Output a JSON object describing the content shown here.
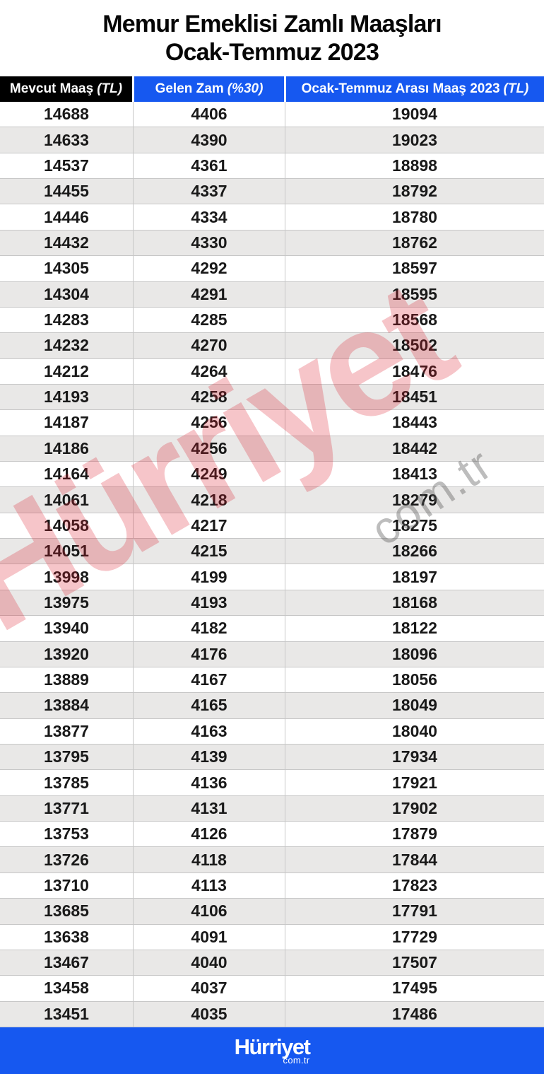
{
  "title": {
    "line1": "Memur Emeklisi Zamlı Maaşları",
    "line2": "Ocak-Temmuz 2023"
  },
  "table": {
    "columns": [
      {
        "label": "Mevcut Maaş",
        "suffix": "(TL)"
      },
      {
        "label": "Gelen Zam",
        "suffix": "(%30)"
      },
      {
        "label": "Ocak-Temmuz Arası Maaş 2023",
        "suffix": "(TL)"
      }
    ]
  },
  "chart_data": {
    "type": "table",
    "title": "Memur Emeklisi Zamlı Maaşları Ocak-Temmuz 2023",
    "columns": [
      "Mevcut Maaş (TL)",
      "Gelen Zam (%30)",
      "Ocak-Temmuz Arası Maaş 2023 (TL)"
    ],
    "rows": [
      [
        14688,
        4406,
        19094
      ],
      [
        14633,
        4390,
        19023
      ],
      [
        14537,
        4361,
        18898
      ],
      [
        14455,
        4337,
        18792
      ],
      [
        14446,
        4334,
        18780
      ],
      [
        14432,
        4330,
        18762
      ],
      [
        14305,
        4292,
        18597
      ],
      [
        14304,
        4291,
        18595
      ],
      [
        14283,
        4285,
        18568
      ],
      [
        14232,
        4270,
        18502
      ],
      [
        14212,
        4264,
        18476
      ],
      [
        14193,
        4258,
        18451
      ],
      [
        14187,
        4256,
        18443
      ],
      [
        14186,
        4256,
        18442
      ],
      [
        14164,
        4249,
        18413
      ],
      [
        14061,
        4218,
        18279
      ],
      [
        14058,
        4217,
        18275
      ],
      [
        14051,
        4215,
        18266
      ],
      [
        13998,
        4199,
        18197
      ],
      [
        13975,
        4193,
        18168
      ],
      [
        13940,
        4182,
        18122
      ],
      [
        13920,
        4176,
        18096
      ],
      [
        13889,
        4167,
        18056
      ],
      [
        13884,
        4165,
        18049
      ],
      [
        13877,
        4163,
        18040
      ],
      [
        13795,
        4139,
        17934
      ],
      [
        13785,
        4136,
        17921
      ],
      [
        13771,
        4131,
        17902
      ],
      [
        13753,
        4126,
        17879
      ],
      [
        13726,
        4118,
        17844
      ],
      [
        13710,
        4113,
        17823
      ],
      [
        13685,
        4106,
        17791
      ],
      [
        13638,
        4091,
        17729
      ],
      [
        13467,
        4040,
        17507
      ],
      [
        13458,
        4037,
        17495
      ],
      [
        13451,
        4035,
        17486
      ]
    ]
  },
  "watermark": {
    "brand": "Hürriyet",
    "domain": "com.tr"
  },
  "footer": {
    "brand": "Hürriyet",
    "domain": "com.tr"
  },
  "colors": {
    "accent": "#1658f0",
    "headerblack": "#000000",
    "rowalt": "#e9e8e7",
    "grid": "#c7c7c7",
    "watermark_red": "#de1e2d"
  }
}
